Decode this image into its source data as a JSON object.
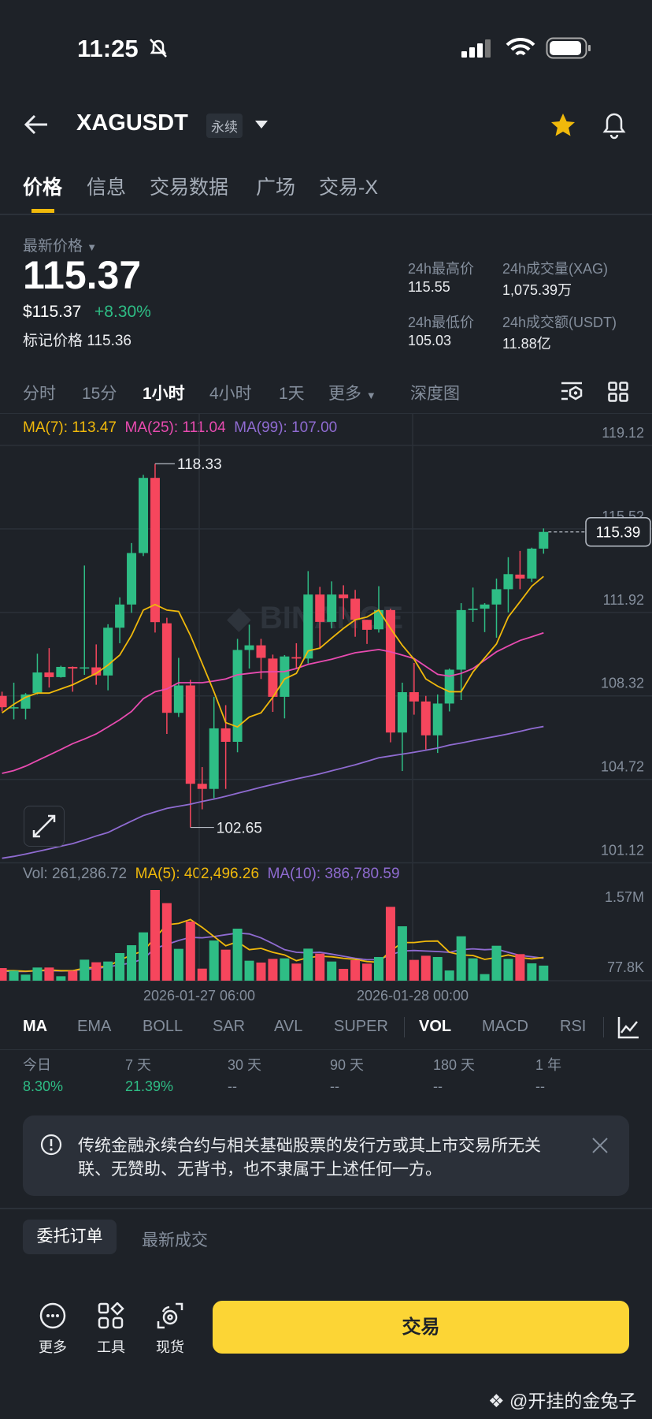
{
  "status_bar": {
    "time": "11:25",
    "icons": [
      "bell-slash-icon",
      "signal-icon",
      "wifi-icon",
      "battery-icon"
    ]
  },
  "header": {
    "symbol": "XAGUSDT",
    "badge": "永续",
    "icons": [
      "back-arrow-icon",
      "caret-down-icon",
      "star-icon",
      "bell-icon"
    ],
    "star_color": "#f0b90b"
  },
  "tabs": [
    {
      "label": "价格",
      "active": true
    },
    {
      "label": "信息"
    },
    {
      "label": "交易数据"
    },
    {
      "label": "广场"
    },
    {
      "label": "交易-X"
    }
  ],
  "price": {
    "label": "最新价格",
    "last": "115.37",
    "usd": "$115.37",
    "change": "+8.30%",
    "mark_label": "标记价格",
    "mark": "115.36"
  },
  "stats": {
    "high_label": "24h最高价",
    "high": "115.55",
    "vol_label": "24h成交量(XAG)",
    "vol": "1,075.39万",
    "low_label": "24h最低价",
    "low": "105.03",
    "amount_label": "24h成交额(USDT)",
    "amount": "11.88亿"
  },
  "intervals": [
    {
      "label": "分时"
    },
    {
      "label": "15分"
    },
    {
      "label": "1小时",
      "active": true
    },
    {
      "label": "4小时"
    },
    {
      "label": "1天"
    },
    {
      "label": "更多"
    },
    {
      "label": "深度图"
    }
  ],
  "chart_data": {
    "type": "candlestick",
    "ma_legend": {
      "ma7": "MA(7): 113.47",
      "ma25": "MA(25): 111.04",
      "ma99": "MA(99): 107.00"
    },
    "y_ticks": [
      "119.12",
      "115.52",
      "111.92",
      "108.32",
      "104.72",
      "101.12"
    ],
    "y_tick_values": [
      119.12,
      115.52,
      111.92,
      108.32,
      104.72,
      101.12
    ],
    "ylim": [
      101.12,
      119.12
    ],
    "x_ticks": [
      "2026-01-27 06:00",
      "2026-01-28 00:00"
    ],
    "high_marker": "118.33",
    "low_marker": "102.65",
    "last_price_tag": "115.39",
    "watermark": "BINANCE",
    "colors": {
      "up": "#2ebd85",
      "down": "#f6465d",
      "ma7": "#f0b90b",
      "ma25": "#e84bb0",
      "ma99": "#8f6bd1"
    },
    "candles_ohlc": [
      [
        108.32,
        108.5,
        107.65,
        107.83
      ],
      [
        107.8,
        108.89,
        107.31,
        107.83
      ],
      [
        107.77,
        108.44,
        107.31,
        108.38
      ],
      [
        108.44,
        110.14,
        108.38,
        109.33
      ],
      [
        109.33,
        110.38,
        108.68,
        109.13
      ],
      [
        109.13,
        109.62,
        109.11,
        109.57
      ],
      [
        109.57,
        109.59,
        108.5,
        109.5
      ],
      [
        109.52,
        113.94,
        109.23,
        109.55
      ],
      [
        109.55,
        110.54,
        108.8,
        109.2
      ],
      [
        109.2,
        111.41,
        108.56,
        111.26
      ],
      [
        111.26,
        112.57,
        110.59,
        112.26
      ],
      [
        112.26,
        114.91,
        111.9,
        114.48
      ],
      [
        114.48,
        117.85,
        114.35,
        117.72
      ],
      [
        117.72,
        118.33,
        111.05,
        111.5
      ],
      [
        111.45,
        111.69,
        106.68,
        107.59
      ],
      [
        107.59,
        109.96,
        107.41,
        108.77
      ],
      [
        108.77,
        109.01,
        102.65,
        104.53
      ],
      [
        104.53,
        105.25,
        103.43,
        104.31
      ],
      [
        104.31,
        108.28,
        103.91,
        106.92
      ],
      [
        106.92,
        107.92,
        104.31,
        106.34
      ],
      [
        106.34,
        110.78,
        105.89,
        110.3
      ],
      [
        110.3,
        111.39,
        109.5,
        110.5
      ],
      [
        110.5,
        110.78,
        109.05,
        109.96
      ],
      [
        109.93,
        110.1,
        107.63,
        108.28
      ],
      [
        108.28,
        110.08,
        107.35,
        110.02
      ],
      [
        109.99,
        110.59,
        109.5,
        109.93
      ],
      [
        109.93,
        113.7,
        109.72,
        112.69
      ],
      [
        112.69,
        113.02,
        110.35,
        111.51
      ],
      [
        111.51,
        113.26,
        111.23,
        112.69
      ],
      [
        112.69,
        113.09,
        111.63,
        112.53
      ],
      [
        112.51,
        112.89,
        110.87,
        111.6
      ],
      [
        111.6,
        111.6,
        110.56,
        111.17
      ],
      [
        111.19,
        113.05,
        111.05,
        112.02
      ],
      [
        112.02,
        112.08,
        106.32,
        106.74
      ],
      [
        106.74,
        108.89,
        105.08,
        108.48
      ],
      [
        108.48,
        109.74,
        107.51,
        108.08
      ],
      [
        108.08,
        108.32,
        106.01,
        106.62
      ],
      [
        106.62,
        108.38,
        105.86,
        107.99
      ],
      [
        107.99,
        109.5,
        107.65,
        109.45
      ],
      [
        109.45,
        112.32,
        108.14,
        112.02
      ],
      [
        112.02,
        112.99,
        111.51,
        112.08
      ],
      [
        112.08,
        112.32,
        111.07,
        112.26
      ],
      [
        112.26,
        113.38,
        110.83,
        112.92
      ],
      [
        112.92,
        114.3,
        111.92,
        113.57
      ],
      [
        113.55,
        114.57,
        112.92,
        113.38
      ],
      [
        113.38,
        114.71,
        113.23,
        114.67
      ],
      [
        114.67,
        115.54,
        114.45,
        115.39
      ]
    ],
    "ma7": [
      107.59,
      107.96,
      108.26,
      108.44,
      108.44,
      108.62,
      108.8,
      109.05,
      109.29,
      109.65,
      110.08,
      110.93,
      112.02,
      112.26,
      112.02,
      111.96,
      110.93,
      109.72,
      108.5,
      107.17,
      106.98,
      107.41,
      107.59,
      108.26,
      109.05,
      109.29,
      110.26,
      110.38,
      110.81,
      111.23,
      111.6,
      111.72,
      112.02,
      111.23,
      110.5,
      109.9,
      109.05,
      108.74,
      108.5,
      108.5,
      109.35,
      109.96,
      110.56,
      111.72,
      112.38,
      113.05,
      113.47
    ],
    "ma25": [
      104.98,
      105.1,
      105.29,
      105.53,
      105.77,
      106.01,
      106.26,
      106.46,
      106.68,
      106.98,
      107.29,
      107.65,
      108.2,
      108.5,
      108.62,
      108.89,
      108.89,
      108.89,
      108.96,
      109.05,
      109.23,
      109.29,
      109.35,
      109.36,
      109.37,
      109.5,
      109.68,
      109.79,
      109.9,
      110.04,
      110.18,
      110.25,
      110.32,
      110.22,
      110.08,
      109.93,
      109.59,
      109.25,
      109.17,
      109.29,
      109.5,
      109.86,
      110.22,
      110.47,
      110.71,
      110.87,
      111.04
    ],
    "ma99": [
      101.32,
      101.4,
      101.5,
      101.61,
      101.72,
      101.84,
      101.95,
      102.11,
      102.28,
      102.43,
      102.68,
      102.92,
      103.16,
      103.32,
      103.47,
      103.56,
      103.65,
      103.77,
      103.87,
      103.99,
      104.12,
      104.25,
      104.38,
      104.5,
      104.62,
      104.74,
      104.85,
      104.96,
      105.09,
      105.22,
      105.35,
      105.5,
      105.65,
      105.73,
      105.81,
      105.89,
      105.98,
      106.07,
      106.2,
      106.29,
      106.39,
      106.49,
      106.58,
      106.68,
      106.79,
      106.91,
      107.0
    ],
    "volume": {
      "legend": {
        "vol": "Vol: 261,286.72",
        "ma5": "MA(5): 402,496.26",
        "ma10": "MA(10): 386,780.59"
      },
      "y_ticks": [
        "1.57M",
        "77.8K"
      ],
      "ymax": 1570000,
      "values": [
        218000,
        173000,
        105000,
        228000,
        228000,
        77000,
        173000,
        364000,
        319000,
        332000,
        478000,
        614000,
        837000,
        1570000,
        1343000,
        551000,
        1024000,
        209000,
        696000,
        537000,
        901000,
        346000,
        314000,
        378000,
        387000,
        296000,
        555000,
        469000,
        332000,
        205000,
        355000,
        296000,
        410000,
        1279000,
        942000,
        360000,
        432000,
        410000,
        177000,
        769000,
        387000,
        114000,
        605000,
        378000,
        460000,
        300000,
        261287
      ],
      "ma5": [
        173000,
        173000,
        164000,
        173000,
        187000,
        173000,
        173000,
        218000,
        232000,
        250000,
        355000,
        446000,
        514000,
        742000,
        969000,
        992000,
        1060000,
        924000,
        765000,
        605000,
        674000,
        537000,
        560000,
        492000,
        446000,
        346000,
        400000,
        423000,
        414000,
        387000,
        369000,
        332000,
        319000,
        514000,
        660000,
        660000,
        683000,
        687000,
        492000,
        446000,
        437000,
        369000,
        400000,
        446000,
        400000,
        378000,
        402496
      ],
      "ma10": [
        164000,
        159000,
        159000,
        173000,
        173000,
        168000,
        173000,
        196000,
        209000,
        241000,
        273000,
        309000,
        378000,
        560000,
        628000,
        696000,
        751000,
        742000,
        765000,
        796000,
        824000,
        810000,
        742000,
        642000,
        537000,
        492000,
        482000,
        492000,
        460000,
        423000,
        387000,
        364000,
        364000,
        446000,
        514000,
        523000,
        514000,
        505000,
        492000,
        537000,
        551000,
        537000,
        546000,
        492000,
        437000,
        414000,
        386781
      ]
    }
  },
  "indicators": {
    "main": [
      {
        "label": "MA",
        "active": true
      },
      {
        "label": "EMA"
      },
      {
        "label": "BOLL"
      },
      {
        "label": "SAR"
      },
      {
        "label": "AVL"
      },
      {
        "label": "SUPER"
      }
    ],
    "sub": [
      {
        "label": "VOL",
        "active": true
      },
      {
        "label": "MACD"
      },
      {
        "label": "RSI"
      }
    ]
  },
  "periods": [
    {
      "label": "今日",
      "value": "8.30%"
    },
    {
      "label": "7 天",
      "value": "21.39%"
    },
    {
      "label": "30 天",
      "value": "--"
    },
    {
      "label": "90 天",
      "value": "--"
    },
    {
      "label": "180 天",
      "value": "--"
    },
    {
      "label": "1 年",
      "value": "--"
    }
  ],
  "notice": {
    "line1": "传统金融永续合约与相关基础股票的发行方或其上市交易所无关",
    "line2": "联、无赞助、无背书，也不隶属于上述任何一方。"
  },
  "order_tabs": [
    {
      "label": "委托订单",
      "active": true
    },
    {
      "label": "最新成交"
    }
  ],
  "bottom_bar": {
    "more": "更多",
    "tools": "工具",
    "spot": "现货",
    "trade": "交易",
    "trade_color": "#fcd535"
  },
  "watermark": "@开挂的金兔子"
}
